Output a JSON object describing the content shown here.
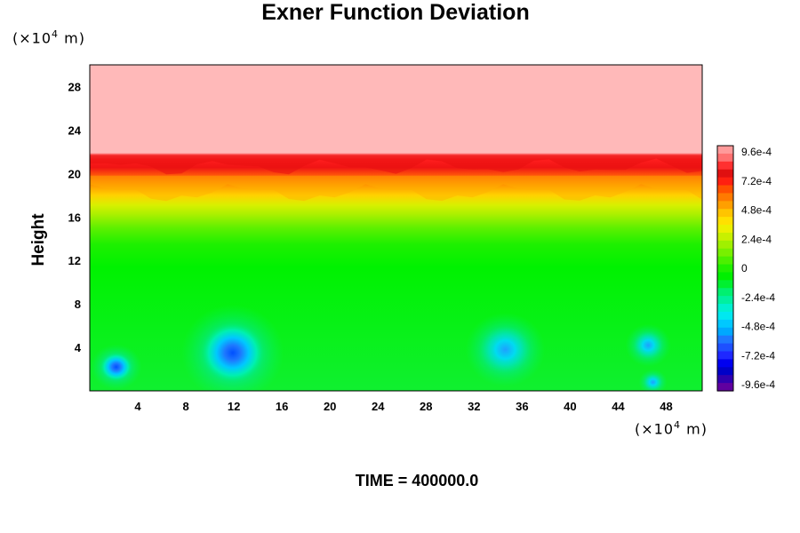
{
  "chart_data": {
    "type": "heatmap",
    "title": "Exner Function Deviation",
    "xlabel": "",
    "ylabel": "Height",
    "x_unit": "(×10⁴ m)",
    "y_unit": "(×10⁴ m)",
    "xlim": [
      0,
      51
    ],
    "ylim": [
      0,
      30
    ],
    "x_ticks": [
      "4",
      "8",
      "12",
      "16",
      "20",
      "24",
      "28",
      "32",
      "36",
      "40",
      "44",
      "48"
    ],
    "y_ticks": [
      "4",
      "8",
      "12",
      "16",
      "20",
      "24",
      "28"
    ],
    "colorbar": {
      "labels": [
        "9.6e-4",
        "7.2e-4",
        "4.8e-4",
        "2.4e-4",
        "0",
        "-2.4e-4",
        "-4.8e-4",
        "-7.2e-4",
        "-9.6e-4"
      ],
      "values": [
        0.00096,
        0.00072,
        0.00048,
        0.00024,
        0,
        -0.00024,
        -0.00048,
        -0.00072,
        -0.00096
      ],
      "vmin": -0.00096,
      "vmax": 0.00096
    },
    "field": {
      "description_levels": [
        {
          "height_range": [
            22,
            30
          ],
          "value": 0.00096
        },
        {
          "height_range": [
            19,
            22
          ],
          "value": 0.0006
        },
        {
          "height_range": [
            16,
            19
          ],
          "value": 0.0002
        },
        {
          "height_range": [
            0,
            16
          ],
          "value": 0.0
        }
      ],
      "minima": [
        {
          "x": 2.2,
          "y": 2.2,
          "value": -0.0005
        },
        {
          "x": 11.9,
          "y": 3.5,
          "value": -0.0006
        },
        {
          "x": 34.6,
          "y": 3.8,
          "value": -0.0004
        },
        {
          "x": 46.5,
          "y": 4.2,
          "value": -0.0003
        },
        {
          "x": 46.9,
          "y": 0.8,
          "value": -0.0004
        }
      ]
    },
    "grid": false,
    "legend": "colorbar-right"
  },
  "footer": {
    "time_label": "TIME = 400000.0"
  },
  "colors": {
    "top_layer": "#ffb9b9",
    "red_band": "#ff1e1e",
    "green_base": "#00f500"
  }
}
